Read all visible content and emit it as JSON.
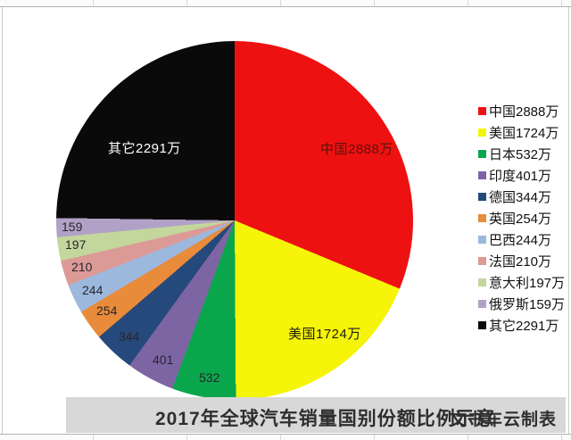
{
  "chart_data": {
    "type": "pie",
    "title": "2017年全球汽车销量国别份额比例示意",
    "unit": "万",
    "categories": [
      "中国",
      "美国",
      "日本",
      "印度",
      "德国",
      "英国",
      "巴西",
      "法国",
      "意大利",
      "俄罗斯",
      "其它"
    ],
    "values": [
      2888,
      1724,
      532,
      401,
      344,
      254,
      244,
      210,
      197,
      159,
      2291
    ],
    "colors": [
      "#ee1111",
      "#f6f408",
      "#0aa64c",
      "#7d65a4",
      "#26497c",
      "#e88b3a",
      "#9cb8dd",
      "#dc9a97",
      "#c3d69b",
      "#b2a1c7",
      "#0a0a0a"
    ],
    "legend_labels": [
      "中国2888万",
      "美国1724万",
      "日本532万",
      "印度401万",
      "德国344万",
      "英国254万",
      "巴西244万",
      "法国210万",
      "意大利197万",
      "俄罗斯159万",
      "其它2291万"
    ],
    "pie_labels": [
      "中国2888万",
      "美国1724万",
      "532",
      "401",
      "344",
      "254",
      "244",
      "210",
      "197",
      "159",
      "其它2291万"
    ],
    "legend_position": "right",
    "start_angle_deg": 0,
    "direction": "clockwise"
  },
  "footer": {
    "credit": "文书车云制表"
  }
}
